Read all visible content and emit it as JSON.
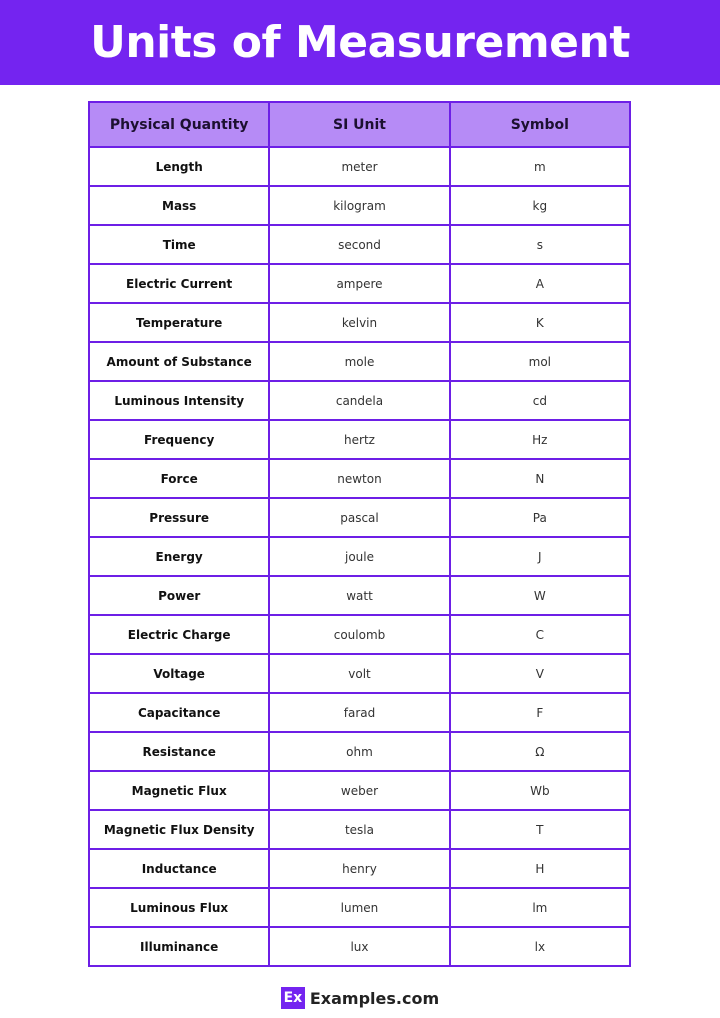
{
  "title": "Units of Measurement",
  "table": {
    "headers": [
      "Physical Quantity",
      "SI Unit",
      "Symbol"
    ],
    "rows": [
      [
        "Length",
        "meter",
        "m"
      ],
      [
        "Mass",
        "kilogram",
        "kg"
      ],
      [
        "Time",
        "second",
        "s"
      ],
      [
        "Electric Current",
        "ampere",
        "A"
      ],
      [
        "Temperature",
        "kelvin",
        "K"
      ],
      [
        "Amount of Substance",
        "mole",
        "mol"
      ],
      [
        "Luminous Intensity",
        "candela",
        "cd"
      ],
      [
        "Frequency",
        "hertz",
        "Hz"
      ],
      [
        "Force",
        "newton",
        "N"
      ],
      [
        "Pressure",
        "pascal",
        "Pa"
      ],
      [
        "Energy",
        "joule",
        "J"
      ],
      [
        "Power",
        "watt",
        "W"
      ],
      [
        "Electric Charge",
        "coulomb",
        "C"
      ],
      [
        "Voltage",
        "volt",
        "V"
      ],
      [
        "Capacitance",
        "farad",
        "F"
      ],
      [
        "Resistance",
        "ohm",
        "Ω"
      ],
      [
        "Magnetic Flux",
        "weber",
        "Wb"
      ],
      [
        "Magnetic Flux Density",
        "tesla",
        "T"
      ],
      [
        "Inductance",
        "henry",
        "H"
      ],
      [
        "Luminous Flux",
        "lumen",
        "lm"
      ],
      [
        "Illuminance",
        "lux",
        "lx"
      ]
    ]
  },
  "footer": {
    "logo_text": "Ex",
    "brand": "Examples.com"
  },
  "colors": {
    "accent": "#7424f0",
    "header_bg": "#b68bf6",
    "border": "#6d1fe6"
  }
}
